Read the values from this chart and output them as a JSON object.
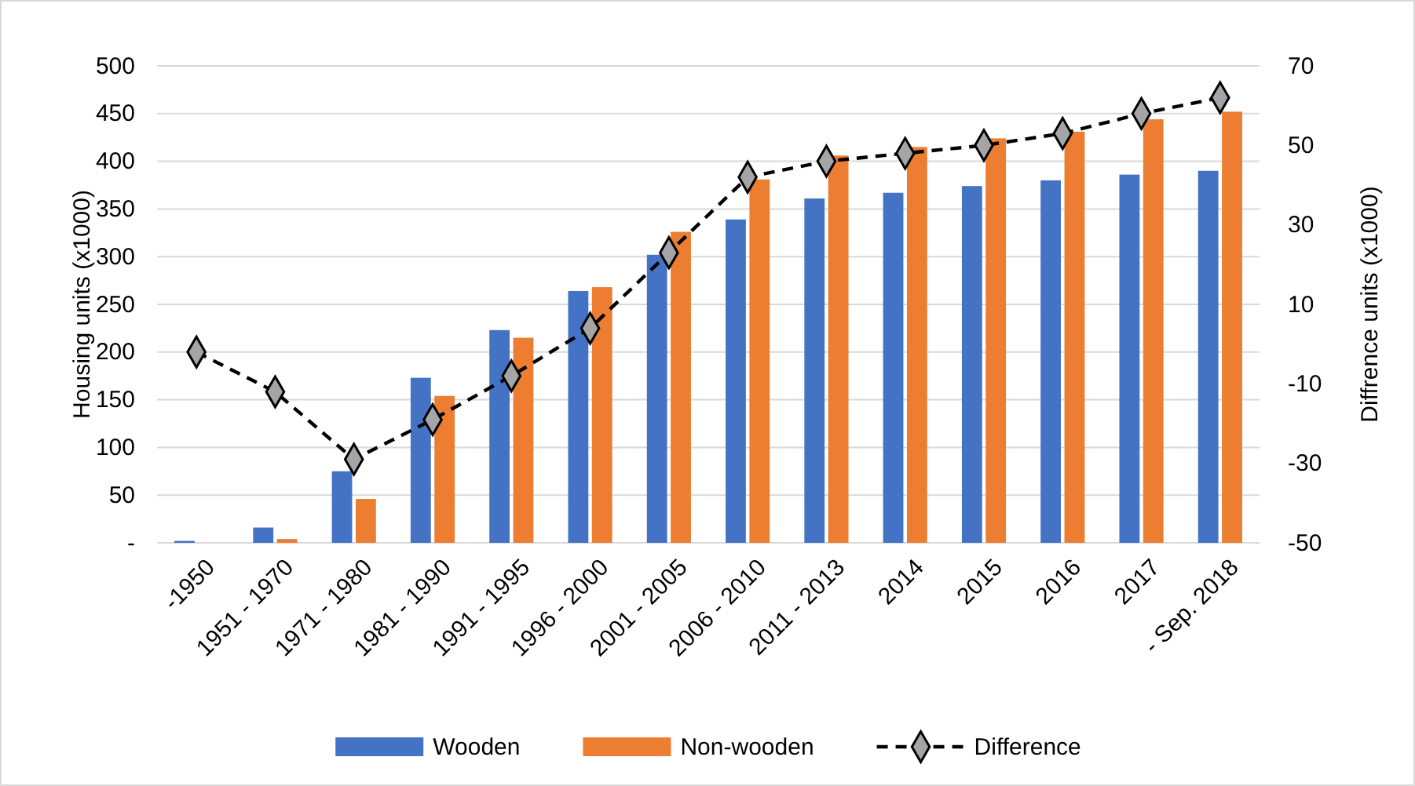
{
  "chart_data": {
    "type": "bar",
    "ylabel": "Housing units (x1000)",
    "y2label": "Diffrence units (x1000)",
    "categories": [
      "-1950",
      "1951 - 1970",
      "1971 - 1980",
      "1981 - 1990",
      "1991 - 1995",
      "1996 - 2000",
      "2001 - 2005",
      "2006 - 2010",
      "2011 - 2013",
      "2014",
      "2015",
      "2016",
      "2017",
      "- Sep. 2018"
    ],
    "series": [
      {
        "name": "Wooden",
        "color": "#4472c4",
        "values": [
          2,
          16,
          75,
          173,
          223,
          264,
          302,
          339,
          361,
          367,
          374,
          380,
          386,
          390
        ]
      },
      {
        "name": "Non-wooden",
        "color": "#ed7d31",
        "values": [
          0,
          4,
          46,
          154,
          215,
          268,
          326,
          381,
          406,
          415,
          424,
          431,
          444,
          452
        ]
      },
      {
        "name": "Difference",
        "type": "line",
        "axis": "y2",
        "color": "#000000",
        "line_style": "dashed",
        "marker": "diamond",
        "values": [
          -2,
          -12,
          -29,
          -19,
          -8,
          4,
          23,
          42,
          46,
          48,
          50,
          53,
          58,
          62
        ]
      }
    ],
    "ylim": [
      0,
      500
    ],
    "yticks": [
      {
        "value": 0,
        "label": "-"
      },
      50,
      100,
      150,
      200,
      250,
      300,
      350,
      400,
      450,
      500
    ],
    "y2lim": [
      -50,
      70
    ],
    "y2ticks": [
      -50,
      -30,
      -10,
      10,
      30,
      50,
      70
    ],
    "grid": "y",
    "legend": "bottom"
  }
}
